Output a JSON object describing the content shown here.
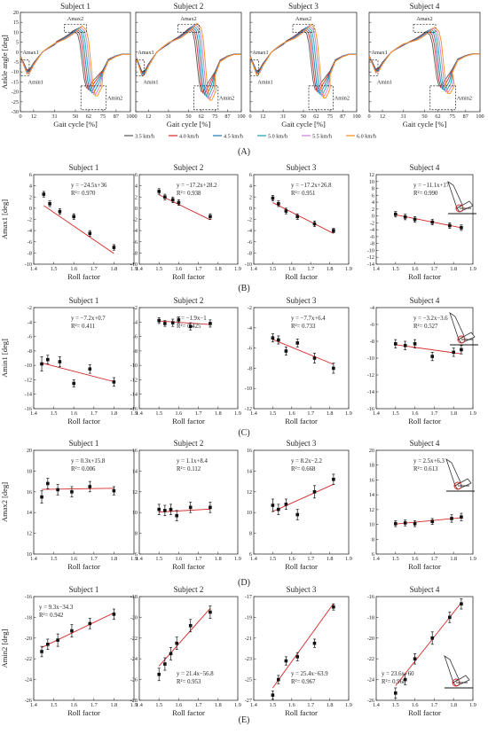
{
  "figure": {
    "panel_labels": [
      "(A)",
      "(B)",
      "(C)",
      "(D)",
      "(E)"
    ],
    "colors": [
      "#555555",
      "#d62728",
      "#1f77b4",
      "#17a2a8",
      "#c77dd9",
      "#ff8c1a"
    ]
  },
  "chart_data": [
    {
      "type": "line",
      "row": "A",
      "subjects": [
        "Subject 1",
        "Subject 2",
        "Subject 3",
        "Subject 4"
      ],
      "xlabel": "Gait cycle [%]",
      "ylabel": "Ankle angle [deg]",
      "xticks": [
        "0",
        "12",
        "31",
        "50",
        "62",
        "75",
        "87",
        "100"
      ],
      "yticks": [
        "20",
        "15",
        "10",
        "5",
        "0",
        "-5",
        "-10",
        "-15",
        "-20",
        "-25",
        "-30"
      ],
      "ylim": [
        -30,
        20
      ],
      "xlim": [
        0,
        100
      ],
      "legend": [
        "3.5 km/h",
        "4.0 km/h",
        "4.5 km/h",
        "5.0 km/h",
        "5.5 km/h",
        "6.0 km/h"
      ],
      "box_labels": [
        "Amax1",
        "Amin1",
        "Amax2",
        "Amin2"
      ],
      "series_shape": {
        "x": [
          0,
          3,
          6,
          9,
          12,
          16,
          20,
          25,
          31,
          37,
          43,
          48,
          52,
          56,
          58,
          60,
          62,
          64,
          66,
          70,
          75,
          80,
          87,
          93,
          100
        ],
        "y": [
          -2,
          -6,
          -10,
          -9,
          -6,
          -3,
          0,
          2,
          4,
          6,
          8,
          10,
          12,
          10,
          5,
          -5,
          -15,
          -20,
          -20,
          -16,
          -10,
          -4,
          -2,
          -1,
          -1
        ]
      }
    },
    {
      "type": "scatter",
      "row": "B",
      "ylabel": "Amax1 [deg]",
      "xlabel": "Roll factor",
      "xlim": [
        1.4,
        1.9
      ],
      "xticks": [
        "1.4",
        "1.5",
        "1.6",
        "1.7",
        "1.8",
        "1.9"
      ],
      "panels": [
        {
          "title": "Subject 1",
          "ylim": [
            -10,
            6
          ],
          "yticks": [
            "-10",
            "-8",
            "-6",
            "-4",
            "-2",
            "0",
            "2",
            "4",
            "6"
          ],
          "eq": "y = −24.5x+36",
          "r2": "R²= 0.970",
          "slope": -24.5,
          "intercept": 36,
          "x": [
            1.45,
            1.48,
            1.53,
            1.6,
            1.68,
            1.8
          ],
          "y": [
            2.5,
            0.8,
            -0.6,
            -1.5,
            -4.5,
            -7
          ],
          "err": [
            0.5,
            0.5,
            0.5,
            0.5,
            0.5,
            0.5
          ]
        },
        {
          "title": "Subject 2",
          "ylim": [
            -10,
            6
          ],
          "yticks": [
            "-10",
            "-8",
            "-6",
            "-4",
            "-2",
            "0",
            "2",
            "4",
            "6"
          ],
          "eq": "y = −17.2x+28.2",
          "r2": "R²= 0.938",
          "slope": -17.2,
          "intercept": 28.2,
          "x": [
            1.5,
            1.53,
            1.57,
            1.6,
            1.76
          ],
          "y": [
            3,
            2,
            1.5,
            1,
            -1.5
          ],
          "err": [
            0.5,
            0.5,
            0.5,
            0.5,
            0.5
          ]
        },
        {
          "title": "Subject 3",
          "ylim": [
            -10,
            6
          ],
          "yticks": [
            "-10",
            "-8",
            "-6",
            "-4",
            "-2",
            "0",
            "2",
            "4",
            "6"
          ],
          "eq": "y = −17.2x+26.8",
          "r2": "R²= 0.951",
          "slope": -17.2,
          "intercept": 26.8,
          "x": [
            1.5,
            1.53,
            1.57,
            1.63,
            1.72,
            1.82
          ],
          "y": [
            1.8,
            0.8,
            -0.5,
            -1.5,
            -2.8,
            -4
          ],
          "err": [
            0.5,
            0.5,
            0.5,
            0.5,
            0.5,
            0.4
          ]
        },
        {
          "title": "Subject 4",
          "ylim": [
            -14,
            12
          ],
          "yticks": [
            "-14",
            "-12",
            "-10",
            "-8",
            "-6",
            "-4",
            "-2",
            "0",
            "2",
            "4",
            "6",
            "8",
            "10",
            "12"
          ],
          "eq": "y = −11.1x+17",
          "r2": "R²= 0.990",
          "slope": -11.1,
          "intercept": 17,
          "x": [
            1.5,
            1.55,
            1.6,
            1.69,
            1.78,
            1.84
          ],
          "y": [
            0.5,
            -0.3,
            -1,
            -1.8,
            -2.8,
            -3.4
          ],
          "err": [
            0.8,
            0.8,
            0.8,
            0.8,
            0.8,
            0.8
          ]
        }
      ]
    },
    {
      "type": "scatter",
      "row": "C",
      "ylabel": "Amin1 [deg]",
      "xlabel": "Roll factor",
      "xlim": [
        1.4,
        1.9
      ],
      "xticks": [
        "1.4",
        "1.5",
        "1.6",
        "1.7",
        "1.8",
        "1.9"
      ],
      "panels": [
        {
          "title": "Subject 1",
          "ylim": [
            -16,
            -2
          ],
          "yticks": [
            "-16",
            "-14",
            "-12",
            "-10",
            "-8",
            "-6",
            "-4",
            "-2"
          ],
          "eq": "y = −7.2x+0.7",
          "r2": "R²= 0.411",
          "slope": -7.2,
          "intercept": 0.7,
          "x": [
            1.44,
            1.47,
            1.53,
            1.6,
            1.68,
            1.8
          ],
          "y": [
            -9.8,
            -9.2,
            -9.5,
            -12.5,
            -10.5,
            -12.3
          ],
          "err": [
            1,
            0.6,
            0.7,
            0.5,
            0.6,
            0.6
          ]
        },
        {
          "title": "Subject 2",
          "ylim": [
            -16,
            -2
          ],
          "yticks": [
            "-16",
            "-14",
            "-12",
            "-10",
            "-8",
            "-6",
            "-4",
            "-2"
          ],
          "eq": "y = −1.9x−1",
          "r2": "R²= 0.425",
          "slope": -1.9,
          "intercept": -1,
          "x": [
            1.5,
            1.53,
            1.57,
            1.6,
            1.66,
            1.76
          ],
          "y": [
            -3.8,
            -4.2,
            -4.1,
            -3.7,
            -4.6,
            -4.2
          ],
          "err": [
            0.4,
            0.4,
            0.5,
            0.4,
            0.5,
            0.5
          ]
        },
        {
          "title": "Subject 3",
          "ylim": [
            -12,
            -2
          ],
          "yticks": [
            "-12",
            "-10",
            "-8",
            "-6",
            "-4",
            "-2"
          ],
          "eq": "y = −7.7x+6.4",
          "r2": "R²= 0.733",
          "slope": -7.7,
          "intercept": 6.4,
          "x": [
            1.5,
            1.53,
            1.57,
            1.63,
            1.72,
            1.82
          ],
          "y": [
            -5,
            -5.2,
            -6.3,
            -5.5,
            -7,
            -8
          ],
          "err": [
            0.4,
            0.4,
            0.4,
            0.4,
            0.5,
            0.5
          ]
        },
        {
          "title": "Subject 4",
          "ylim": [
            -16,
            -4
          ],
          "yticks": [
            "-16",
            "-14",
            "-12",
            "-10",
            "-8",
            "-6",
            "-4"
          ],
          "eq": "y = −3.2x−3.6",
          "r2": "R²= 0.527",
          "slope": -3.2,
          "intercept": -3.6,
          "x": [
            1.5,
            1.55,
            1.6,
            1.69,
            1.8,
            1.84
          ],
          "y": [
            -8.3,
            -8.5,
            -8.3,
            -9.8,
            -9.3,
            -9
          ],
          "err": [
            0.5,
            0.5,
            0.5,
            0.5,
            0.5,
            0.5
          ]
        }
      ]
    },
    {
      "type": "scatter",
      "row": "D",
      "ylabel": "Amax2 [deg]",
      "xlabel": "Roll factor",
      "xlim": [
        1.4,
        1.9
      ],
      "xticks": [
        "1.4",
        "1.5",
        "1.6",
        "1.7",
        "1.8",
        "1.9"
      ],
      "panels": [
        {
          "title": "Subject 1",
          "ylim": [
            10,
            20
          ],
          "yticks": [
            "10",
            "12",
            "14",
            "16",
            "18",
            "20"
          ],
          "eq": "y = 0.3x+15.8",
          "r2": "R²= 0.006",
          "slope": 0.3,
          "intercept": 15.8,
          "x": [
            1.44,
            1.47,
            1.52,
            1.59,
            1.68,
            1.8
          ],
          "y": [
            15.5,
            16.8,
            16.2,
            16,
            16.5,
            16.1
          ],
          "err": [
            0.6,
            0.5,
            0.5,
            0.5,
            0.5,
            0.4
          ]
        },
        {
          "title": "Subject 2",
          "ylim": [
            6,
            16
          ],
          "yticks": [
            "6",
            "8",
            "10",
            "12",
            "14",
            "16"
          ],
          "eq": "y = 1.1x+8.4",
          "r2": "R²= 0.112",
          "slope": 1.1,
          "intercept": 8.4,
          "x": [
            1.5,
            1.53,
            1.56,
            1.59,
            1.66,
            1.76
          ],
          "y": [
            10.3,
            10.2,
            10.3,
            9.7,
            10.5,
            10.5
          ],
          "err": [
            0.5,
            0.5,
            0.5,
            0.5,
            0.5,
            0.5
          ]
        },
        {
          "title": "Subject 3",
          "ylim": [
            6,
            16
          ],
          "yticks": [
            "6",
            "8",
            "10",
            "12",
            "14",
            "16"
          ],
          "eq": "y = 8.2x−2.2",
          "r2": "R²= 0.668",
          "slope": 8.2,
          "intercept": -2.2,
          "x": [
            1.5,
            1.53,
            1.57,
            1.63,
            1.72,
            1.82
          ],
          "y": [
            10.7,
            10.3,
            10.8,
            9.8,
            12,
            13.2
          ],
          "err": [
            0.6,
            0.5,
            0.5,
            0.5,
            0.6,
            0.5
          ]
        },
        {
          "title": "Subject 4",
          "ylim": [
            6,
            20
          ],
          "yticks": [
            "6",
            "8",
            "10",
            "12",
            "14",
            "16",
            "18",
            "20"
          ],
          "eq": "y = 2.5x+6.3",
          "r2": "R²= 0.613",
          "slope": 2.5,
          "intercept": 6.3,
          "x": [
            1.5,
            1.55,
            1.6,
            1.69,
            1.79,
            1.84
          ],
          "y": [
            10.1,
            10.2,
            10.1,
            10.4,
            10.8,
            11
          ],
          "err": [
            0.4,
            0.4,
            0.4,
            0.4,
            0.5,
            0.5
          ]
        }
      ]
    },
    {
      "type": "scatter",
      "row": "E",
      "ylabel": "Amin2 [deg]",
      "xlabel": "Roll factor",
      "xlim": [
        1.4,
        1.9
      ],
      "xticks": [
        "1.4",
        "1.5",
        "1.6",
        "1.7",
        "1.8",
        "1.9"
      ],
      "panels": [
        {
          "title": "Subject 1",
          "ylim": [
            -26,
            -16
          ],
          "yticks": [
            "-26",
            "-24",
            "-22",
            "-20",
            "-18",
            "-16"
          ],
          "eq": "y = 9.3x−34.3",
          "r2": "R²= 0.942",
          "slope": 9.3,
          "intercept": -34.3,
          "x": [
            1.44,
            1.47,
            1.52,
            1.59,
            1.68,
            1.8
          ],
          "y": [
            -21.3,
            -20.6,
            -20.2,
            -19.3,
            -18.6,
            -17.7
          ],
          "err": [
            0.5,
            0.5,
            0.6,
            0.6,
            0.5,
            0.5
          ]
        },
        {
          "title": "Subject 2",
          "ylim": [
            -28,
            -18
          ],
          "yticks": [
            "-28",
            "-26",
            "-24",
            "-22",
            "-20",
            "-18"
          ],
          "eq": "y = 21.4x−56.8",
          "r2": "R²= 0.953",
          "slope": 21.4,
          "intercept": -56.8,
          "x": [
            1.5,
            1.53,
            1.56,
            1.59,
            1.66,
            1.76
          ],
          "y": [
            -25.5,
            -24.5,
            -23.5,
            -22.5,
            -20.8,
            -19.5
          ],
          "err": [
            0.6,
            0.6,
            0.6,
            0.6,
            0.6,
            0.6
          ]
        },
        {
          "title": "Subject 3",
          "ylim": [
            -27,
            -17
          ],
          "yticks": [
            "-27",
            "-25",
            "-23",
            "-21",
            "-19",
            "-17"
          ],
          "eq": "y = 25.4x−63.9",
          "r2": "R²= 0.967",
          "slope": 25.4,
          "intercept": -63.9,
          "x": [
            1.5,
            1.53,
            1.57,
            1.63,
            1.72,
            1.82
          ],
          "y": [
            -26.5,
            -25,
            -23.2,
            -22.8,
            -21.5,
            -18
          ],
          "err": [
            0.4,
            0.4,
            0.4,
            0.4,
            0.4,
            0.3
          ]
        },
        {
          "title": "Subject 4",
          "ylim": [
            -26,
            -16
          ],
          "yticks": [
            "-26",
            "-24",
            "-22",
            "-20",
            "-18",
            "-16"
          ],
          "eq": "y = 23.6x−60",
          "r2": "R²= 0.968",
          "slope": 23.6,
          "intercept": -60,
          "x": [
            1.5,
            1.55,
            1.6,
            1.69,
            1.78,
            1.84
          ],
          "y": [
            -25.3,
            -24,
            -22,
            -20,
            -18,
            -16.7
          ],
          "err": [
            0.5,
            0.5,
            0.5,
            0.6,
            0.5,
            0.5
          ]
        }
      ]
    }
  ]
}
